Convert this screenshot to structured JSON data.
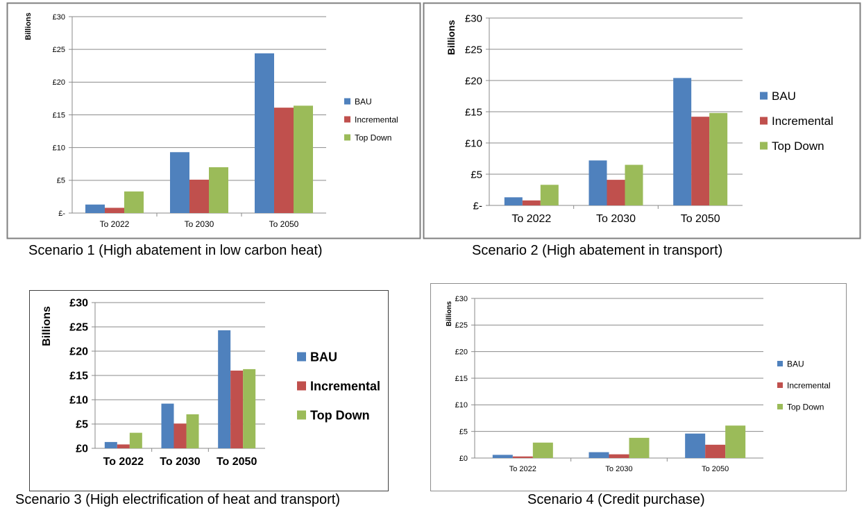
{
  "colors": {
    "BAU": "#4F81BD",
    "Incremental": "#C0504D",
    "Top Down": "#9BBB59"
  },
  "captions": [
    "Scenario 1 (High abatement in low carbon heat)",
    "Scenario 2 (High abatement in transport)",
    "Scenario 3 (High electrification of heat and transport)",
    "Scenario 4 (Credit purchase)"
  ],
  "chart_data": [
    {
      "type": "bar",
      "title": "",
      "ylabel": "Billions",
      "xlabel": "",
      "categories": [
        "To 2022",
        "To 2030",
        "To 2050"
      ],
      "ylim": [
        0,
        30
      ],
      "yticks": [
        "£-",
        "£5",
        "£10",
        "£15",
        "£20",
        "£25",
        "£30"
      ],
      "grid": true,
      "legend": "right",
      "series": [
        {
          "name": "BAU",
          "values": [
            1.3,
            9.3,
            24.4
          ]
        },
        {
          "name": "Incremental",
          "values": [
            0.8,
            5.1,
            16.1
          ]
        },
        {
          "name": "Top Down",
          "values": [
            3.3,
            7.0,
            16.4
          ]
        }
      ]
    },
    {
      "type": "bar",
      "title": "",
      "ylabel": "Billions",
      "xlabel": "",
      "categories": [
        "To 2022",
        "To 2030",
        "To 2050"
      ],
      "ylim": [
        0,
        30
      ],
      "yticks": [
        "£-",
        "£5",
        "£10",
        "£15",
        "£20",
        "£25",
        "£30"
      ],
      "grid": true,
      "legend": "right",
      "series": [
        {
          "name": "BAU",
          "values": [
            1.3,
            7.2,
            20.4
          ]
        },
        {
          "name": "Incremental",
          "values": [
            0.8,
            4.1,
            14.2
          ]
        },
        {
          "name": "Top Down",
          "values": [
            3.3,
            6.5,
            14.8
          ]
        }
      ]
    },
    {
      "type": "bar",
      "title": "",
      "ylabel": "Billions",
      "xlabel": "",
      "categories": [
        "To 2022",
        "To 2030",
        "To 2050"
      ],
      "ylim": [
        0,
        30
      ],
      "yticks": [
        "£0",
        "£5",
        "£10",
        "£15",
        "£20",
        "£25",
        "£30"
      ],
      "grid": true,
      "legend": "right",
      "series": [
        {
          "name": "BAU",
          "values": [
            1.3,
            9.2,
            24.3
          ]
        },
        {
          "name": "Incremental",
          "values": [
            0.8,
            5.1,
            16.0
          ]
        },
        {
          "name": "Top Down",
          "values": [
            3.2,
            7.0,
            16.3
          ]
        }
      ]
    },
    {
      "type": "bar",
      "title": "",
      "ylabel": "Billions",
      "xlabel": "",
      "categories": [
        "To 2022",
        "To 2030",
        "To 2050"
      ],
      "ylim": [
        0,
        30
      ],
      "yticks": [
        "£0",
        "£5",
        "£10",
        "£15",
        "£20",
        "£25",
        "£30"
      ],
      "grid": true,
      "legend": "right",
      "series": [
        {
          "name": "BAU",
          "values": [
            0.6,
            1.1,
            4.6
          ]
        },
        {
          "name": "Incremental",
          "values": [
            0.3,
            0.7,
            2.5
          ]
        },
        {
          "name": "Top Down",
          "values": [
            2.9,
            3.8,
            6.1
          ]
        }
      ]
    }
  ]
}
